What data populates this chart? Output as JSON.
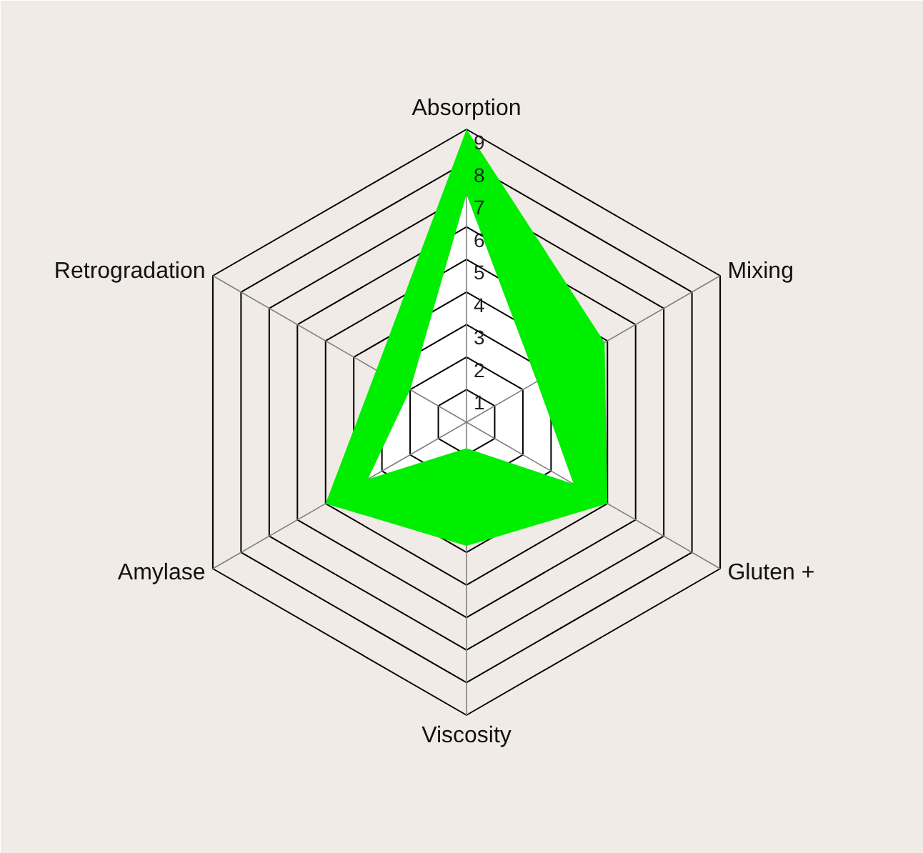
{
  "chart_data": {
    "type": "radar",
    "categories": [
      "Absorption",
      "Mixing",
      "Gluten +",
      "Viscosity",
      "Amylase",
      "Retrogradation"
    ],
    "series": [
      {
        "color": "#00ee00",
        "values": [
          9,
          4.9,
          5,
          3.8,
          5,
          3.2
        ]
      },
      {
        "color": "#ffffff",
        "values": [
          7,
          2.5,
          3.8,
          0.8,
          3.5,
          2
        ]
      }
    ],
    "ylim": [
      0,
      9
    ],
    "yticks": [
      1,
      2,
      3,
      4,
      5,
      6,
      7,
      8,
      9
    ],
    "grid": true
  }
}
